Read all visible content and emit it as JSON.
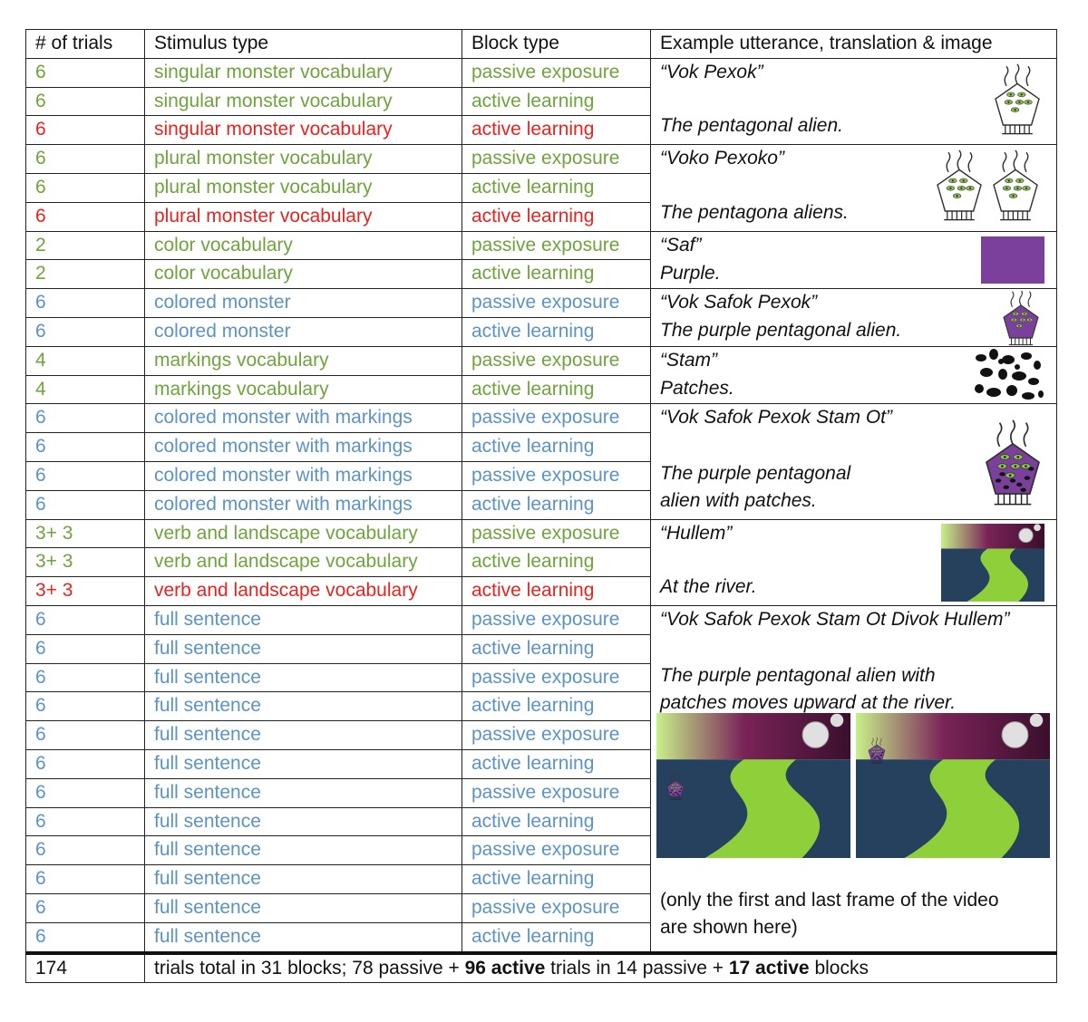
{
  "headers": [
    "# of trials",
    "Stimulus type",
    "Block type",
    "Example utterance, translation & image"
  ],
  "rows": [
    {
      "trials": "6",
      "stimulus": "singular monster vocabulary",
      "block": "passive exposure",
      "color": "green",
      "bold": false
    },
    {
      "trials": "6",
      "stimulus": "singular monster vocabulary",
      "block": "active learning",
      "color": "green",
      "bold": true
    },
    {
      "trials": "6",
      "stimulus": "singular monster vocabulary",
      "block": "active learning",
      "color": "red",
      "bold": true
    },
    {
      "trials": "6",
      "stimulus": "plural monster vocabulary",
      "block": "passive exposure",
      "color": "green",
      "bold": false
    },
    {
      "trials": "6",
      "stimulus": "plural monster vocabulary",
      "block": "active learning",
      "color": "green",
      "bold": true
    },
    {
      "trials": "6",
      "stimulus": "plural monster vocabulary",
      "block": "active learning",
      "color": "red",
      "bold": true
    },
    {
      "trials": "2",
      "stimulus": "color vocabulary",
      "block": "passive exposure",
      "color": "green",
      "bold": false
    },
    {
      "trials": "2",
      "stimulus": "color vocabulary",
      "block": "active learning",
      "color": "green",
      "bold": true
    },
    {
      "trials": "6",
      "stimulus": "colored monster",
      "block": "passive exposure",
      "color": "blue",
      "bold": false
    },
    {
      "trials": "6",
      "stimulus": "colored monster",
      "block": "active learning",
      "color": "blue",
      "bold": true
    },
    {
      "trials": "4",
      "stimulus": "markings vocabulary",
      "block": "passive exposure",
      "color": "green",
      "bold": false
    },
    {
      "trials": "4",
      "stimulus": "markings vocabulary",
      "block": "active learning",
      "color": "green",
      "bold": true
    },
    {
      "trials": "6",
      "stimulus": "colored monster with markings",
      "block": "passive exposure",
      "color": "blue",
      "bold": false
    },
    {
      "trials": "6",
      "stimulus": "colored monster with markings",
      "block": "active learning",
      "color": "blue",
      "bold": true
    },
    {
      "trials": "6",
      "stimulus": "colored monster with markings",
      "block": "passive exposure",
      "color": "blue",
      "bold": false
    },
    {
      "trials": "6",
      "stimulus": "colored monster with markings",
      "block": "active learning",
      "color": "blue",
      "bold": true
    },
    {
      "trials": "3+ 3",
      "stimulus": "verb and landscape vocabulary",
      "block": "passive exposure",
      "color": "green",
      "bold": false
    },
    {
      "trials": "3+ 3",
      "stimulus": "verb and landscape vocabulary",
      "block": "active learning",
      "color": "green",
      "bold": true
    },
    {
      "trials": "3+ 3",
      "stimulus": "verb and landscape vocabulary",
      "block": "active learning",
      "color": "red",
      "bold": true
    },
    {
      "trials": "6",
      "stimulus": "full sentence",
      "block": "passive exposure",
      "color": "blue",
      "bold": false
    },
    {
      "trials": "6",
      "stimulus": "full sentence",
      "block": "active learning",
      "color": "blue",
      "bold": true
    },
    {
      "trials": "6",
      "stimulus": "full sentence",
      "block": "passive exposure",
      "color": "blue",
      "bold": false
    },
    {
      "trials": "6",
      "stimulus": "full sentence",
      "block": "active learning",
      "color": "blue",
      "bold": true
    },
    {
      "trials": "6",
      "stimulus": "full sentence",
      "block": "passive exposure",
      "color": "blue",
      "bold": false
    },
    {
      "trials": "6",
      "stimulus": "full sentence",
      "block": "active learning",
      "color": "blue",
      "bold": true
    },
    {
      "trials": "6",
      "stimulus": "full sentence",
      "block": "passive exposure",
      "color": "blue",
      "bold": false
    },
    {
      "trials": "6",
      "stimulus": "full sentence",
      "block": "active learning",
      "color": "blue",
      "bold": true
    },
    {
      "trials": "6",
      "stimulus": "full sentence",
      "block": "passive exposure",
      "color": "blue",
      "bold": false
    },
    {
      "trials": "6",
      "stimulus": "full sentence",
      "block": "active learning",
      "color": "blue",
      "bold": true
    },
    {
      "trials": "6",
      "stimulus": "full sentence",
      "block": "passive exposure",
      "color": "blue",
      "bold": false
    },
    {
      "trials": "6",
      "stimulus": "full sentence",
      "block": "active learning",
      "color": "blue",
      "bold": true
    }
  ],
  "examples": [
    {
      "utterance": "“Vok Pexok”",
      "translation": "The pentagonal alien.",
      "image": "single-pentagon-alien"
    },
    {
      "utterance": "“Voko Pexoko”",
      "translation": "The pentagona aliens.",
      "image": "two-pentagon-aliens"
    },
    {
      "utterance": "“Saf”",
      "translation": "Purple.",
      "image": "purple-square"
    },
    {
      "utterance": "“Vok Safok Pexok”",
      "translation": "The purple pentagonal alien.",
      "image": "purple-alien"
    },
    {
      "utterance": "“Stam”",
      "translation": "Patches.",
      "image": "black-patches"
    },
    {
      "utterance": "“Vok Safok Pexok Stam Ot”",
      "translation_lines": [
        "The purple pentagonal",
        "alien with patches."
      ],
      "image": "purple-alien-with-patches"
    },
    {
      "utterance": "“Hullem”",
      "translation": "At the river.",
      "image": "river-landscape"
    },
    {
      "utterance": "“Vok Safok Pexok Stam Ot Divok Hullem”",
      "translation_lines": [
        "The purple pentagonal alien with",
        "patches moves upward at the river."
      ],
      "image": "video-frames",
      "note_lines": [
        "(only the first and last frame of the video",
        "are shown here)"
      ]
    }
  ],
  "total": {
    "trials": "174",
    "p1": "trials total in 31 blocks; 78 passive + ",
    "b1": "96 active",
    "p2": " trials in 14 passive + ",
    "b2": "17 active",
    "p3": " blocks"
  },
  "colors": {
    "green": "#6fa33c",
    "red": "#e8231f",
    "blue": "#5b93c7",
    "purple": "#7b3f9c",
    "river": "#8ecf3a",
    "water": "#25415e"
  }
}
